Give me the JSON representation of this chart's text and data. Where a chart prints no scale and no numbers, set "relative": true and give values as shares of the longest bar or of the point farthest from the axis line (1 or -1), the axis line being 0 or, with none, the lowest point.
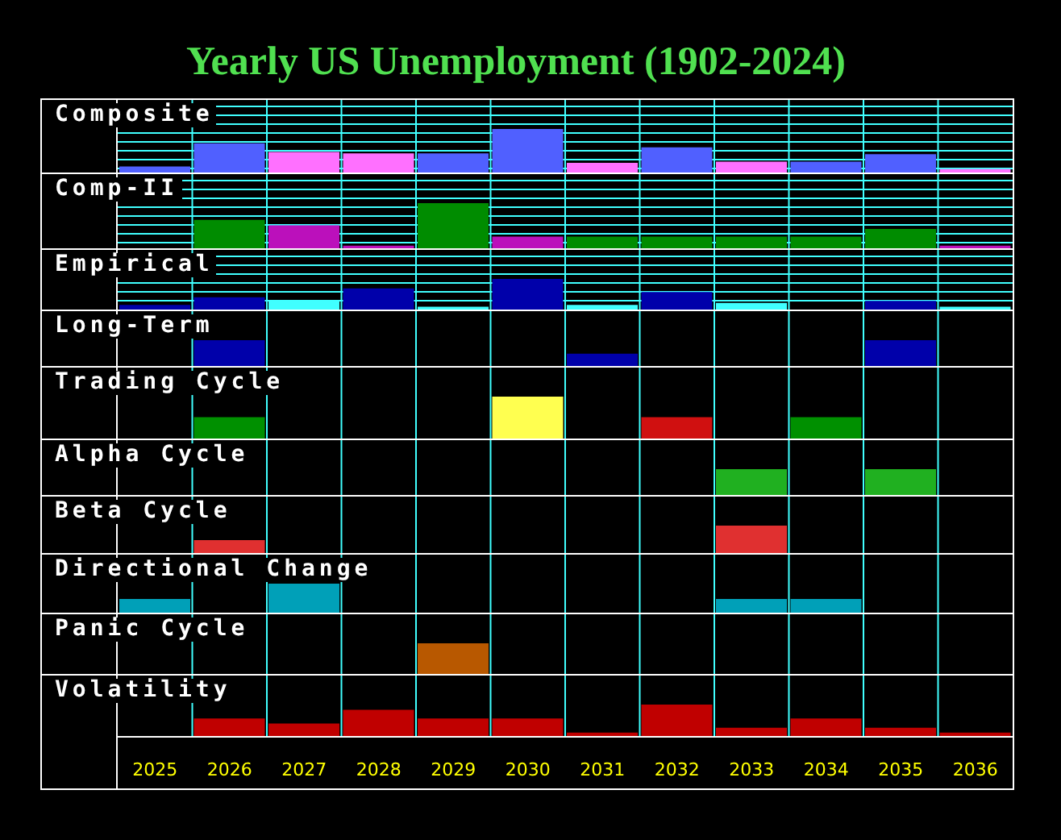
{
  "chart_data": [
    {
      "type": "other",
      "title": "Yearly US Unemployment (1902-2024)"
    },
    {
      "type": "bar",
      "title": "Composite",
      "categories": [
        "2025",
        "2026",
        "2027",
        "2028",
        "2029",
        "2030",
        "2031",
        "2032",
        "2033",
        "2034",
        "2035",
        "2036"
      ],
      "values": [
        0.14,
        0.67,
        0.47,
        0.44,
        0.44,
        1,
        0.22,
        0.58,
        0.25,
        0.25,
        0.42,
        0.08
      ],
      "colors": [
        "#5060ff",
        "#5060ff",
        "#ff70ff",
        "#ff70ff",
        "#5060ff",
        "#5060ff",
        "#ff70ff",
        "#5060ff",
        "#ff70ff",
        "#5060ff",
        "#5060ff",
        "#ff70ff"
      ],
      "relative": true,
      "grid": true,
      "tick_labels": false
    },
    {
      "type": "bar",
      "title": "Comp-II",
      "categories": [
        "2025",
        "2026",
        "2027",
        "2028",
        "2029",
        "2030",
        "2031",
        "2032",
        "2033",
        "2034",
        "2035",
        "2036"
      ],
      "values": [
        null,
        0.63,
        0.51,
        0.06,
        1,
        0.26,
        0.26,
        0.26,
        0.26,
        0.26,
        0.43,
        0.06
      ],
      "colors": [
        null,
        "#008c00",
        "#bb10bb",
        "#bb10bb",
        "#008c00",
        "#bb10bb",
        "#008c00",
        "#008c00",
        "#008c00",
        "#008c00",
        "#008c00",
        "#bb10bb"
      ],
      "relative": true,
      "grid": true,
      "tick_labels": false
    },
    {
      "type": "bar",
      "title": "Empirical",
      "categories": [
        "2025",
        "2026",
        "2027",
        "2028",
        "2029",
        "2030",
        "2031",
        "2032",
        "2033",
        "2034",
        "2035",
        "2036"
      ],
      "values": [
        0.15,
        0.4,
        0.28,
        0.69,
        0.09,
        1,
        0.15,
        0.57,
        0.22,
        null,
        0.28,
        0.09
      ],
      "colors": [
        "#0000aa",
        "#0000aa",
        "#40ffff",
        "#0000aa",
        "#40ffff",
        "#0000aa",
        "#40ffff",
        "#0000aa",
        "#40ffff",
        null,
        "#0000aa",
        "#40ffff"
      ],
      "relative": true,
      "grid": true,
      "tick_labels": false
    },
    {
      "type": "bar",
      "title": "Long-Term",
      "categories": [
        "2025",
        "2026",
        "2027",
        "2028",
        "2029",
        "2030",
        "2031",
        "2032",
        "2033",
        "2034",
        "2035",
        "2036"
      ],
      "values": [
        null,
        1,
        null,
        null,
        null,
        null,
        0.48,
        null,
        null,
        null,
        1,
        null
      ],
      "color": "#0000aa",
      "relative": true,
      "grid": "x",
      "tick_labels": false
    },
    {
      "type": "bar",
      "title": "Trading Cycle",
      "categories": [
        "2025",
        "2026",
        "2027",
        "2028",
        "2029",
        "2030",
        "2031",
        "2032",
        "2033",
        "2034",
        "2035",
        "2036"
      ],
      "values": [
        null,
        0.51,
        null,
        null,
        null,
        1,
        null,
        0.51,
        null,
        0.51,
        null,
        null
      ],
      "colors": [
        null,
        "#009000",
        null,
        null,
        null,
        "#ffff50",
        null,
        "#d01010",
        null,
        "#009000",
        null,
        null
      ],
      "relative": true,
      "grid": "x",
      "tick_labels": false
    },
    {
      "type": "bar",
      "title": "Alpha Cycle",
      "categories": [
        "2025",
        "2026",
        "2027",
        "2028",
        "2029",
        "2030",
        "2031",
        "2032",
        "2033",
        "2034",
        "2035",
        "2036"
      ],
      "values": [
        null,
        null,
        null,
        null,
        null,
        null,
        null,
        null,
        1,
        null,
        1,
        null
      ],
      "color": "#20b020",
      "relative": true,
      "grid": "x",
      "tick_labels": false
    },
    {
      "type": "bar",
      "title": "Beta Cycle",
      "categories": [
        "2025",
        "2026",
        "2027",
        "2028",
        "2029",
        "2030",
        "2031",
        "2032",
        "2033",
        "2034",
        "2035",
        "2036"
      ],
      "values": [
        null,
        0.47,
        null,
        null,
        null,
        null,
        null,
        null,
        1,
        null,
        null,
        null
      ],
      "color": "#e03030",
      "relative": true,
      "grid": "x",
      "tick_labels": false
    },
    {
      "type": "bar",
      "title": "Directional Change",
      "categories": [
        "2025",
        "2026",
        "2027",
        "2028",
        "2029",
        "2030",
        "2031",
        "2032",
        "2033",
        "2034",
        "2035",
        "2036"
      ],
      "values": [
        0.47,
        null,
        1,
        null,
        null,
        null,
        null,
        null,
        0.47,
        0.47,
        null,
        null
      ],
      "color": "#00a0b8",
      "relative": true,
      "grid": "x",
      "tick_labels": false
    },
    {
      "type": "bar",
      "title": "Panic Cycle",
      "categories": [
        "2025",
        "2026",
        "2027",
        "2028",
        "2029",
        "2030",
        "2031",
        "2032",
        "2033",
        "2034",
        "2035",
        "2036"
      ],
      "values": [
        null,
        null,
        null,
        null,
        1,
        null,
        null,
        null,
        null,
        null,
        null,
        null
      ],
      "color": "#b85800",
      "relative": true,
      "grid": "x",
      "tick_labels": false
    },
    {
      "type": "bar",
      "title": "Volatility",
      "categories": [
        "2025",
        "2026",
        "2027",
        "2028",
        "2029",
        "2030",
        "2031",
        "2032",
        "2033",
        "2034",
        "2035",
        "2036"
      ],
      "values": [
        null,
        0.57,
        0.41,
        0.84,
        0.57,
        0.57,
        0.13,
        1,
        0.28,
        0.57,
        0.28,
        0.13
      ],
      "color": "#c00000",
      "relative": true,
      "grid": "x"
    }
  ]
}
